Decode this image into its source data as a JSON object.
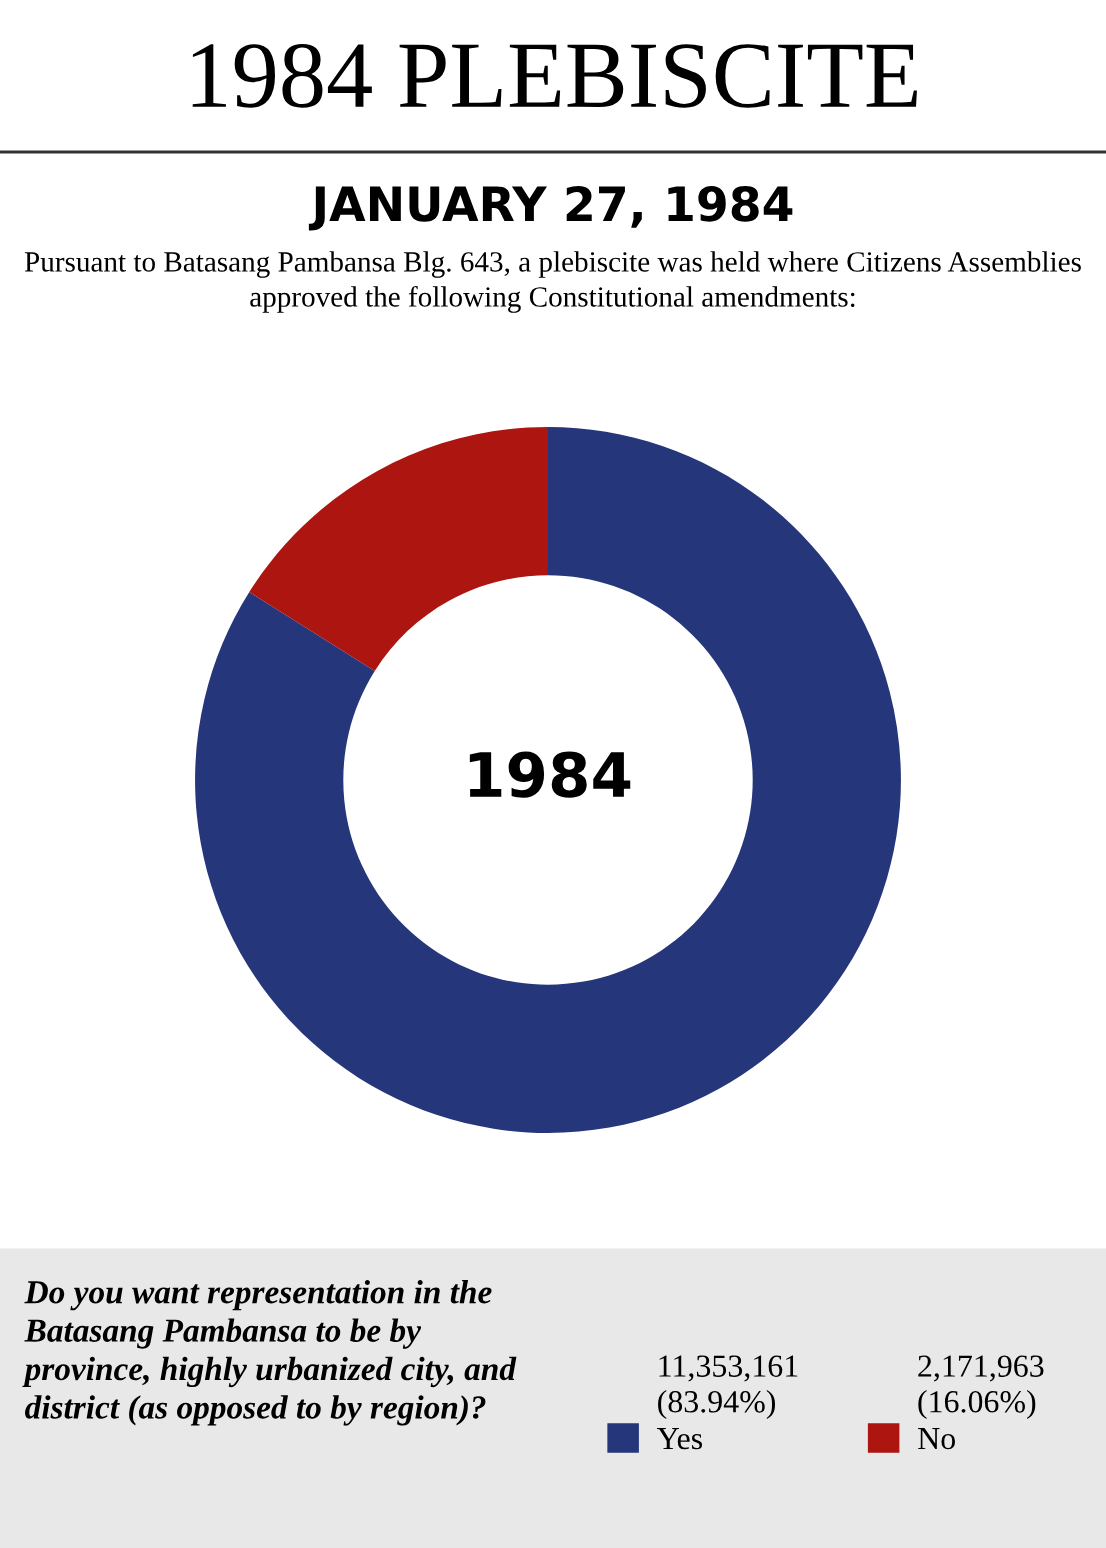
{
  "chart_data": {
    "type": "donut",
    "title": "1984 PLEBISCITE",
    "subtitle": "JANUARY 27, 1984",
    "annotations": [
      "Pursuant to Batasang Pambansa Blg. 643, a plebiscite was held where Citizens Assemblies approved the following Constitutional amendments:",
      "1984",
      "Do you want representation in the Batasang Pambansa to be by province, highly urbanized city, and district (as opposed to by region)?"
    ],
    "categories": [
      "Yes",
      "No"
    ],
    "values": [
      11353161,
      2171963
    ],
    "colors": [
      "#26367a",
      "#ad1511"
    ],
    "value_labels": [
      "11,353,161\n(83.94%)",
      "2,171,963\n(16.06%)"
    ],
    "legend": "bottom"
  }
}
